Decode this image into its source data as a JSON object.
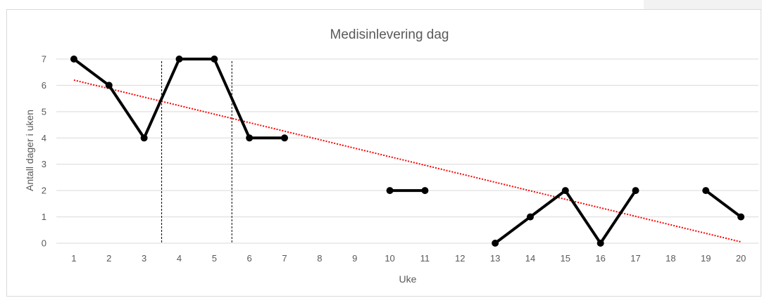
{
  "chart_data": {
    "type": "line",
    "title": "Medisinlevering dag",
    "xlabel": "Uke",
    "ylabel": "Antall dager i uken",
    "categories": [
      "1",
      "2",
      "3",
      "4",
      "5",
      "6",
      "7",
      "8",
      "9",
      "10",
      "11",
      "12",
      "13",
      "14",
      "15",
      "16",
      "17",
      "18",
      "19",
      "20"
    ],
    "series": [
      {
        "values": [
          7,
          6,
          4,
          7,
          7,
          4,
          4,
          null,
          null,
          2,
          2,
          null,
          0,
          1,
          2,
          0,
          2,
          null,
          2,
          1
        ],
        "color": "#000000"
      }
    ],
    "trendline": {
      "type": "linear",
      "color": "#ff0000",
      "style": "dotted",
      "start": 6.2,
      "end": 0.05
    },
    "phase_dividers": [
      3.5,
      5.5
    ],
    "ylim": [
      0,
      7
    ],
    "yticks": [
      0,
      1,
      2,
      3,
      4,
      5,
      6,
      7
    ],
    "grid": true,
    "legend": "none"
  }
}
